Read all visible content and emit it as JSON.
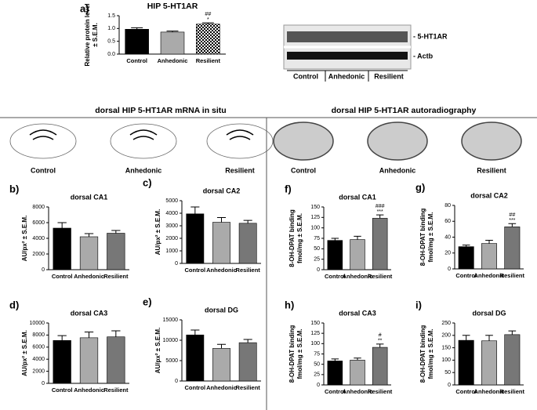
{
  "figure": {
    "sections": [
      "dorsal HIP 5-HT1AR mRNA in situ",
      "dorsal HIP 5-HT1AR autoradiography"
    ],
    "insitu_labels": [
      "Control",
      "Anhedonic",
      "Resilient"
    ],
    "autorad_labels": [
      "Control",
      "Anhedonic",
      "Resilient"
    ],
    "blot": {
      "bands": [
        "- 5-HT1AR",
        "- Actb"
      ],
      "groups": [
        "Control",
        "Anhedonic",
        "Resilient"
      ]
    }
  },
  "chart_data": [
    {
      "type": "bar",
      "panel": "a)",
      "title": "HIP 5-HT1AR",
      "ylabel": [
        "Relative protein level",
        "± S.E.M."
      ],
      "categories": [
        "Control",
        "Anhedonic",
        "Resilient"
      ],
      "values": [
        0.97,
        0.86,
        1.17
      ],
      "errors": [
        0.06,
        0.04,
        0.05
      ],
      "colors": [
        "#000000",
        "#aaaaaa",
        "#ffffff"
      ],
      "checkered": [
        false,
        false,
        true
      ],
      "annotations": [
        [],
        [],
        [
          "##",
          "*"
        ]
      ],
      "ylim": [
        0,
        1.5
      ],
      "yticks": [
        {
          "value": 0,
          "label": "0.0"
        },
        0.5,
        {
          "value": 1,
          "label": "1.0"
        },
        1.5
      ]
    },
    {
      "type": "bar",
      "panel": "b)",
      "title": "dorsal CA1",
      "ylabel": [
        "AU/px² ± S.E.M."
      ],
      "categories": [
        "Control",
        "Anhedonic",
        "Resilient"
      ],
      "values": [
        5300,
        4200,
        4650
      ],
      "errors": [
        700,
        400,
        350
      ],
      "colors": [
        "#000000",
        "#aaaaaa",
        "#777777"
      ],
      "annotations": [
        [],
        [],
        []
      ],
      "ylim": [
        0,
        8000
      ],
      "yticks": [
        0,
        2000,
        4000,
        6000,
        8000
      ]
    },
    {
      "type": "bar",
      "panel": "c)",
      "title": "dorsal CA2",
      "ylabel": [
        "AU/px² ± S.E.M."
      ],
      "categories": [
        "Control",
        "Anhedonic",
        "Resilient"
      ],
      "values": [
        3950,
        3280,
        3200
      ],
      "errors": [
        550,
        380,
        230
      ],
      "colors": [
        "#000000",
        "#aaaaaa",
        "#777777"
      ],
      "annotations": [
        [],
        [],
        []
      ],
      "ylim": [
        0,
        5000
      ],
      "yticks": [
        0,
        1000,
        2000,
        3000,
        4000,
        5000
      ]
    },
    {
      "type": "bar",
      "panel": "d)",
      "title": "dorsal CA3",
      "ylabel": [
        "AU/px² ± S.E.M."
      ],
      "categories": [
        "Control",
        "Anhedonic",
        "Resilient"
      ],
      "values": [
        7100,
        7550,
        7700
      ],
      "errors": [
        800,
        950,
        1000
      ],
      "colors": [
        "#000000",
        "#aaaaaa",
        "#777777"
      ],
      "annotations": [
        [],
        [],
        []
      ],
      "ylim": [
        0,
        10000
      ],
      "yticks": [
        0,
        2000,
        4000,
        6000,
        8000,
        10000
      ]
    },
    {
      "type": "bar",
      "panel": "e)",
      "title": "dorsal DG",
      "ylabel": [
        "AU/px² ± S.E.M."
      ],
      "categories": [
        "Control",
        "Anhedonic",
        "Resilient"
      ],
      "values": [
        11300,
        8000,
        9400
      ],
      "errors": [
        1200,
        1000,
        800
      ],
      "colors": [
        "#000000",
        "#aaaaaa",
        "#777777"
      ],
      "annotations": [
        [],
        [],
        []
      ],
      "ylim": [
        0,
        15000
      ],
      "yticks": [
        0,
        5000,
        10000,
        15000
      ]
    },
    {
      "type": "bar",
      "panel": "f)",
      "title": "dorsal CA1",
      "ylabel": [
        "8-OH-DPAT binding",
        "fmol/mg ± S.E.M."
      ],
      "categories": [
        "Control",
        "Anhedonic",
        "Resilient"
      ],
      "values": [
        70,
        72,
        123
      ],
      "errors": [
        5,
        8,
        8
      ],
      "colors": [
        "#000000",
        "#aaaaaa",
        "#777777"
      ],
      "annotations": [
        [],
        [],
        [
          "###",
          "***"
        ]
      ],
      "ylim": [
        0,
        150
      ],
      "yticks": [
        0,
        25,
        50,
        75,
        100,
        125,
        150
      ]
    },
    {
      "type": "bar",
      "panel": "g)",
      "title": "dorsal CA2",
      "ylabel": [
        "8-OH-DPAT binding",
        "fmol/mg ± S.E.M."
      ],
      "categories": [
        "Control",
        "Anhedonic",
        "Resilient"
      ],
      "values": [
        28,
        32,
        53
      ],
      "errors": [
        2,
        4,
        4
      ],
      "colors": [
        "#000000",
        "#aaaaaa",
        "#777777"
      ],
      "annotations": [
        [],
        [],
        [
          "##",
          "***"
        ]
      ],
      "ylim": [
        0,
        80
      ],
      "yticks": [
        0,
        20,
        40,
        60,
        80
      ]
    },
    {
      "type": "bar",
      "panel": "h)",
      "title": "dorsal CA3",
      "ylabel": [
        "8-OH-DPAT binding",
        "fmol/mg ± S.E.M."
      ],
      "categories": [
        "Control",
        "Anhedonic",
        "Resilient"
      ],
      "values": [
        58,
        60,
        91
      ],
      "errors": [
        5,
        5,
        8
      ],
      "colors": [
        "#000000",
        "#aaaaaa",
        "#777777"
      ],
      "annotations": [
        [],
        [],
        [
          "#",
          "**"
        ]
      ],
      "ylim": [
        0,
        150
      ],
      "yticks": [
        0,
        25,
        50,
        75,
        100,
        125,
        150
      ]
    },
    {
      "type": "bar",
      "panel": "i)",
      "title": "dorsal DG",
      "ylabel": [
        "8-OH-DPAT binding",
        "fmol/mg ± S.E.M."
      ],
      "categories": [
        "Control",
        "Anhedonic",
        "Resilient"
      ],
      "values": [
        180,
        178,
        203
      ],
      "errors": [
        20,
        22,
        15
      ],
      "colors": [
        "#000000",
        "#aaaaaa",
        "#777777"
      ],
      "annotations": [
        [],
        [],
        []
      ],
      "ylim": [
        0,
        250
      ],
      "yticks": [
        0,
        50,
        100,
        150,
        200,
        250
      ]
    }
  ]
}
